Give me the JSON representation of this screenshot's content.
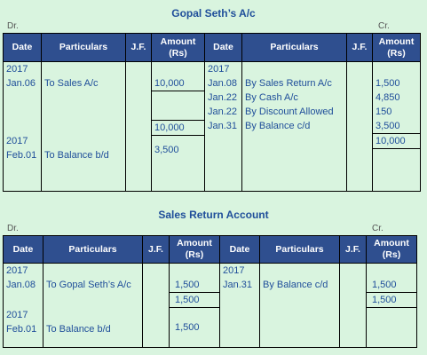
{
  "t1": {
    "title": "Gopal Seth’s A/c",
    "dr": "Dr.",
    "cr": "Cr.",
    "headers": {
      "date": "Date",
      "particulars": "Particulars",
      "jf": "J.F.",
      "amount": "Amount",
      "amount_unit": "(Rs)"
    },
    "left": {
      "year1": "2017",
      "date1": "Jan.06",
      "part1": "To Sales A/c",
      "amt1": "10,000",
      "total": "10,000",
      "year2": "2017",
      "date2": "Feb.01",
      "part2": "To Balance b/d",
      "amt2": "3,500"
    },
    "right": {
      "year": "2017",
      "rows": [
        {
          "date": "Jan.08",
          "part": "By Sales Return A/c",
          "amt": "1,500"
        },
        {
          "date": "Jan.22",
          "part": "By Cash A/c",
          "amt": "4,850"
        },
        {
          "date": "Jan.22",
          "part": "By Discount Allowed",
          "amt": "150"
        },
        {
          "date": "Jan.31",
          "part": "By Balance c/d",
          "amt": "3,500"
        }
      ],
      "total": "10,000"
    }
  },
  "t2": {
    "title": "Sales Return Account",
    "dr": "Dr.",
    "cr": "Cr.",
    "headers": {
      "date": "Date",
      "particulars": "Particulars",
      "jf": "J.F.",
      "amount": "Amount",
      "amount_unit": "(Rs)"
    },
    "left": {
      "year1": "2017",
      "date1": "Jan.08",
      "part1": "To Gopal Seth’s A/c",
      "amt1": "1,500",
      "total": "1,500",
      "year2": "2017",
      "date2": "Feb.01",
      "part2": "To Balance b/d",
      "amt2": "1,500"
    },
    "right": {
      "year": "2017",
      "date": "Jan.31",
      "part": "By Balance c/d",
      "amt": "1,500",
      "total": "1,500"
    }
  }
}
